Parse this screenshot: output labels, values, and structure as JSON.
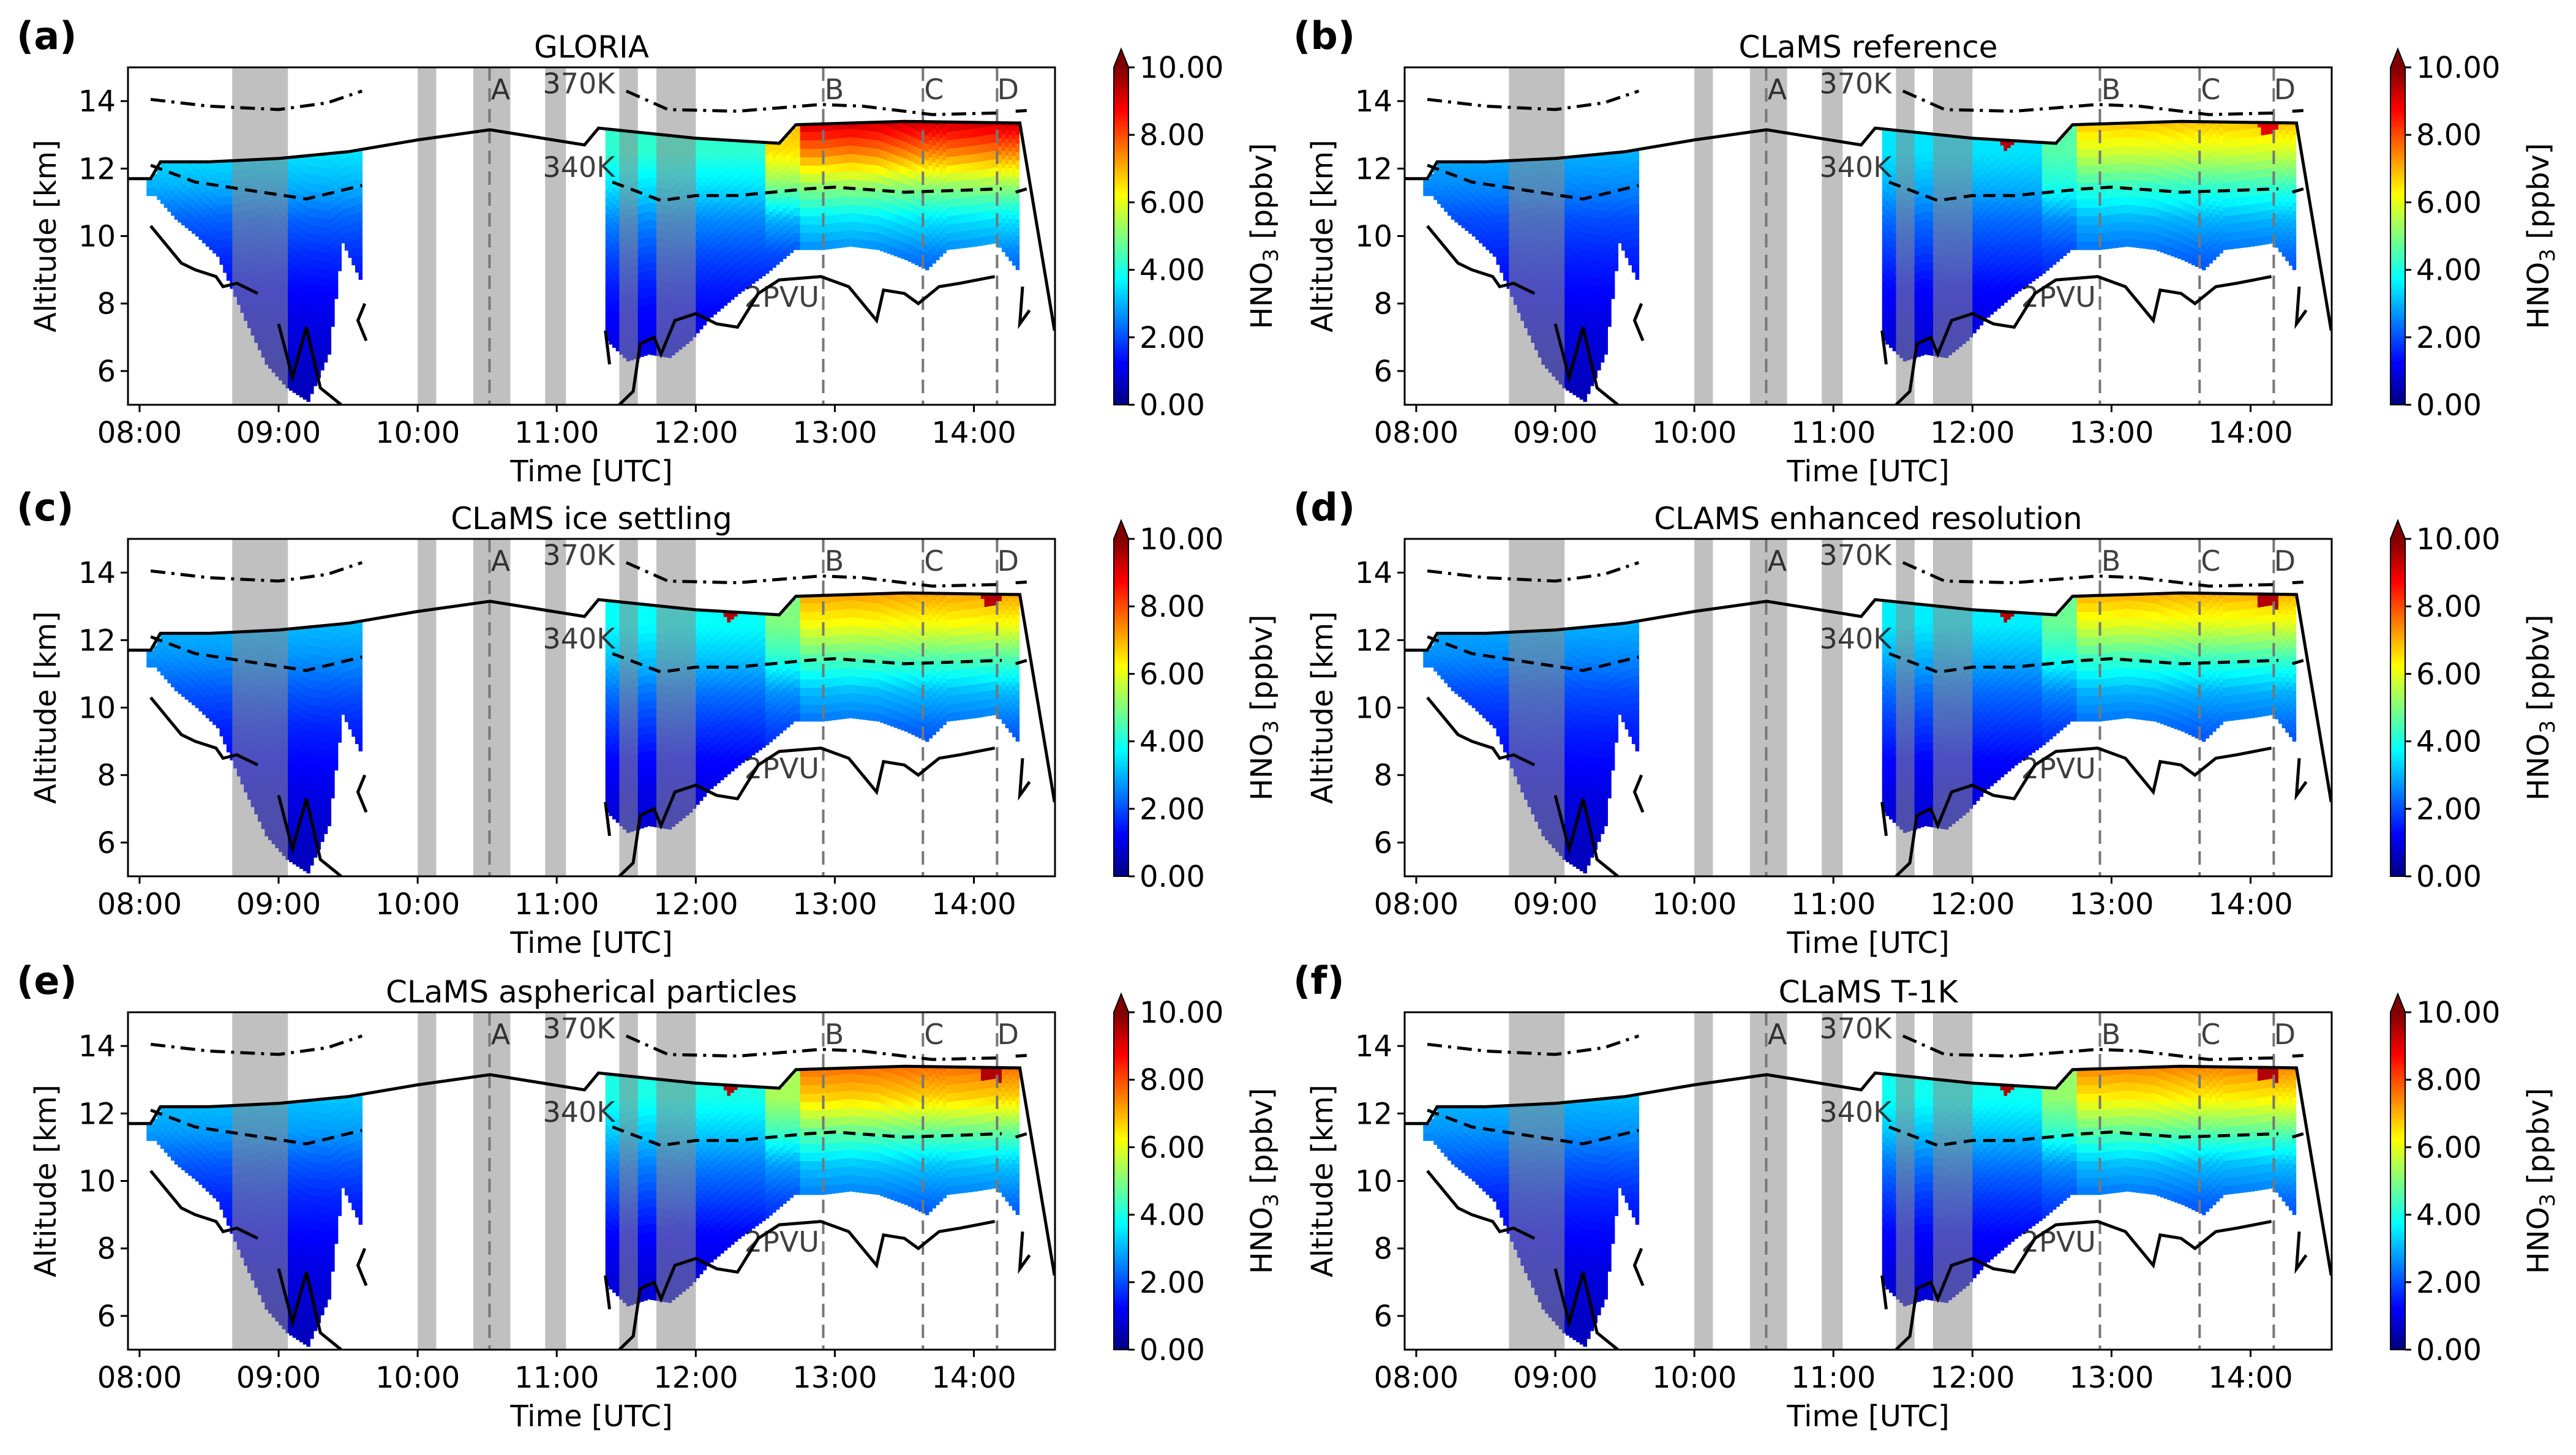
{
  "chart_data": {
    "type": "heatmap",
    "colormap": "jet",
    "xlabel": "Time [UTC]",
    "ylabel": "Altitude [km]",
    "colorbar_label": "HNO3 [ppbv]",
    "colorbar_label_sub": "3",
    "colorbar_label_pre": "HNO",
    "colorbar_label_post": " [ppbv]",
    "colorbar_range": [
      0,
      10
    ],
    "colorbar_ticks": [
      "0.00",
      "2.00",
      "4.00",
      "6.00",
      "8.00",
      "10.00"
    ],
    "colorbar_extend": "max",
    "xlim_hours_utc": [
      "07:55",
      "14:35"
    ],
    "ylim": [
      5,
      15
    ],
    "xticks": [
      "08:00",
      "09:00",
      "10:00",
      "11:00",
      "12:00",
      "13:00",
      "14:00"
    ],
    "yticks": [
      6,
      8,
      10,
      12,
      14
    ],
    "value_levels_km": [
      5.5,
      6.5,
      7.5,
      8.5,
      9.5,
      10.5,
      11.5,
      12.5,
      13.5
    ],
    "shaded_intervals": [
      [
        "08:40",
        "09:04"
      ],
      [
        "10:00",
        "10:08"
      ],
      [
        "10:24",
        "10:40"
      ],
      [
        "10:55",
        "11:04"
      ],
      [
        "11:27",
        "11:35"
      ],
      [
        "11:43",
        "12:00"
      ]
    ],
    "markers": [
      {
        "label": "A",
        "time": "10:31"
      },
      {
        "label": "B",
        "time": "12:55"
      },
      {
        "label": "C",
        "time": "13:38"
      },
      {
        "label": "D",
        "time": "14:10"
      }
    ],
    "line_labels": {
      "theta_370": "370K",
      "theta_340": "340K",
      "pv": "2PVU"
    },
    "coverage": [
      {
        "t": 8.1,
        "bottom": 11.2
      },
      {
        "t": 8.25,
        "bottom": 10.5
      },
      {
        "t": 8.4,
        "bottom": 10.0
      },
      {
        "t": 8.55,
        "bottom": 9.4
      },
      {
        "t": 8.75,
        "bottom": 7.5
      },
      {
        "t": 8.9,
        "bottom": 6.2
      },
      {
        "t": 9.05,
        "bottom": 5.5
      },
      {
        "t": 9.2,
        "bottom": 5.1
      },
      {
        "t": 9.35,
        "bottom": 6.5
      },
      {
        "t": 9.45,
        "bottom": 9.8
      },
      {
        "t": 9.6,
        "bottom": 8.5
      },
      {
        "t": 11.35,
        "bottom": 6.9
      },
      {
        "t": 11.5,
        "bottom": 6.3
      },
      {
        "t": 11.65,
        "bottom": 6.5
      },
      {
        "t": 11.8,
        "bottom": 6.4
      },
      {
        "t": 11.95,
        "bottom": 6.9
      },
      {
        "t": 12.1,
        "bottom": 7.6
      },
      {
        "t": 12.3,
        "bottom": 8.3
      },
      {
        "t": 12.5,
        "bottom": 8.9
      },
      {
        "t": 12.7,
        "bottom": 9.6
      },
      {
        "t": 12.9,
        "bottom": 9.6
      },
      {
        "t": 13.1,
        "bottom": 9.7
      },
      {
        "t": 13.3,
        "bottom": 9.6
      },
      {
        "t": 13.5,
        "bottom": 9.3
      },
      {
        "t": 13.65,
        "bottom": 9.0
      },
      {
        "t": 13.8,
        "bottom": 9.6
      },
      {
        "t": 14.0,
        "bottom": 9.7
      },
      {
        "t": 14.15,
        "bottom": 9.8
      },
      {
        "t": 14.32,
        "bottom": 8.9
      }
    ],
    "tropopause_line": [
      [
        7.92,
        11.7
      ],
      [
        8.08,
        11.7
      ],
      [
        8.15,
        12.2
      ],
      [
        8.5,
        12.2
      ],
      [
        9.0,
        12.3
      ],
      [
        9.5,
        12.5
      ],
      [
        10.0,
        12.85
      ],
      [
        10.52,
        13.15
      ],
      [
        11.2,
        12.7
      ],
      [
        11.3,
        13.2
      ],
      [
        12.0,
        12.9
      ],
      [
        12.6,
        12.75
      ],
      [
        12.72,
        13.3
      ],
      [
        13.5,
        13.4
      ],
      [
        14.33,
        13.35
      ],
      [
        14.58,
        7.2
      ]
    ],
    "theta_370_line": [
      [
        [
          8.08,
          14.05
        ],
        [
          8.5,
          13.85
        ],
        [
          9.0,
          13.75
        ],
        [
          9.35,
          13.95
        ],
        [
          9.6,
          14.3
        ]
      ],
      [
        [
          11.5,
          14.3
        ],
        [
          11.8,
          13.75
        ],
        [
          12.3,
          13.7
        ],
        [
          12.9,
          13.9
        ],
        [
          13.2,
          13.85
        ],
        [
          13.7,
          13.6
        ],
        [
          14.2,
          13.65
        ]
      ],
      [
        [
          14.3,
          13.7
        ],
        [
          14.38,
          13.72
        ]
      ]
    ],
    "theta_340_line": [
      [
        [
          8.08,
          12.1
        ],
        [
          8.4,
          11.6
        ],
        [
          8.8,
          11.35
        ],
        [
          9.2,
          11.1
        ],
        [
          9.6,
          11.5
        ]
      ],
      [
        [
          11.4,
          11.6
        ],
        [
          11.75,
          11.05
        ],
        [
          12.0,
          11.2
        ],
        [
          12.3,
          11.2
        ],
        [
          12.8,
          11.4
        ],
        [
          13.0,
          11.45
        ],
        [
          13.5,
          11.3
        ],
        [
          14.2,
          11.4
        ]
      ],
      [
        [
          14.3,
          11.3
        ],
        [
          14.38,
          11.4
        ]
      ]
    ],
    "pv_line": [
      [
        [
          8.08,
          10.3
        ],
        [
          8.2,
          9.7
        ],
        [
          8.3,
          9.2
        ],
        [
          8.4,
          9.0
        ],
        [
          8.55,
          8.8
        ],
        [
          8.6,
          8.5
        ],
        [
          8.7,
          8.6
        ],
        [
          8.85,
          8.3
        ]
      ],
      [
        [
          9.0,
          7.4
        ],
        [
          9.1,
          5.8
        ],
        [
          9.2,
          7.3
        ],
        [
          9.3,
          5.5
        ],
        [
          9.45,
          5.0
        ]
      ],
      [
        [
          9.62,
          8.0
        ],
        [
          9.57,
          7.5
        ],
        [
          9.63,
          6.9
        ]
      ],
      [
        [
          11.35,
          7.2
        ],
        [
          11.38,
          6.2
        ]
      ],
      [
        [
          11.45,
          5.0
        ],
        [
          11.55,
          5.4
        ],
        [
          11.6,
          6.8
        ],
        [
          11.7,
          7.0
        ],
        [
          11.75,
          6.5
        ],
        [
          11.85,
          7.5
        ],
        [
          12.0,
          7.7
        ],
        [
          12.15,
          7.4
        ],
        [
          12.3,
          7.3
        ],
        [
          12.45,
          8.3
        ],
        [
          12.6,
          8.7
        ],
        [
          12.9,
          8.8
        ],
        [
          13.1,
          8.5
        ],
        [
          13.3,
          7.5
        ],
        [
          13.35,
          8.4
        ],
        [
          13.5,
          8.3
        ],
        [
          13.6,
          8.0
        ],
        [
          13.75,
          8.5
        ],
        [
          13.9,
          8.6
        ],
        [
          14.15,
          8.8
        ]
      ],
      [
        [
          14.35,
          8.5
        ],
        [
          14.33,
          7.4
        ],
        [
          14.4,
          7.8
        ]
      ]
    ],
    "panels": [
      {
        "label": "(a)",
        "title": "GLORIA",
        "regimes": [
          {
            "t": [
              8.05,
              9.65
            ],
            "values": [
              0.6,
              0.8,
              1.0,
              1.3,
              1.7,
              2.2,
              3.0,
              3.5,
              3.5
            ]
          },
          {
            "t": [
              11.3,
              12.5
            ],
            "values": [
              0.8,
              1.0,
              1.2,
              1.5,
              2.0,
              2.6,
              3.5,
              4.2,
              4.2
            ]
          },
          {
            "t": [
              12.5,
              12.75
            ],
            "values": [
              1.0,
              1.0,
              1.0,
              1.5,
              2.0,
              3.0,
              5.0,
              6.5,
              7.0
            ]
          },
          {
            "t": [
              12.75,
              14.35
            ],
            "values": [
              1.0,
              1.0,
              1.5,
              2.0,
              2.5,
              3.5,
              5.2,
              7.5,
              9.5
            ]
          }
        ],
        "hotspots": []
      },
      {
        "label": "(b)",
        "title": "CLaMS reference",
        "regimes": [
          {
            "t": [
              8.05,
              9.65
            ],
            "values": [
              0.6,
              0.8,
              1.0,
              1.3,
              1.6,
              2.0,
              2.6,
              3.0,
              3.0
            ]
          },
          {
            "t": [
              11.3,
              12.5
            ],
            "values": [
              0.6,
              0.8,
              1.0,
              1.3,
              1.8,
              2.3,
              3.0,
              3.5,
              3.5
            ]
          },
          {
            "t": [
              12.5,
              12.75
            ],
            "values": [
              0.8,
              1.0,
              1.0,
              1.4,
              1.9,
              2.6,
              4.0,
              4.6,
              4.6
            ]
          },
          {
            "t": [
              12.75,
              14.35
            ],
            "values": [
              1.0,
              1.0,
              1.3,
              1.8,
              2.3,
              3.0,
              4.3,
              5.8,
              7.0
            ]
          }
        ],
        "hotspots": [
          {
            "t": [
              12.2,
              12.3
            ],
            "alt": [
              12.6,
              13.3
            ],
            "value": 9.5
          },
          {
            "t": [
              14.05,
              14.2
            ],
            "alt": [
              13.1,
              13.4
            ],
            "value": 9.0
          }
        ]
      },
      {
        "label": "(c)",
        "title": "CLaMS ice settling",
        "regimes": [
          {
            "t": [
              8.05,
              9.65
            ],
            "values": [
              0.6,
              0.8,
              1.0,
              1.3,
              1.6,
              2.1,
              2.7,
              3.1,
              3.1
            ]
          },
          {
            "t": [
              11.3,
              12.5
            ],
            "values": [
              0.6,
              0.8,
              1.0,
              1.3,
              1.8,
              2.4,
              3.2,
              3.8,
              3.8
            ]
          },
          {
            "t": [
              12.5,
              12.75
            ],
            "values": [
              0.8,
              1.0,
              1.0,
              1.4,
              2.0,
              2.7,
              4.2,
              5.0,
              5.0
            ]
          },
          {
            "t": [
              12.75,
              14.35
            ],
            "values": [
              1.0,
              1.0,
              1.3,
              1.8,
              2.3,
              3.1,
              4.6,
              6.2,
              7.3
            ]
          }
        ],
        "hotspots": [
          {
            "t": [
              12.2,
              12.3
            ],
            "alt": [
              12.6,
              13.3
            ],
            "value": 9.5
          },
          {
            "t": [
              14.05,
              14.2
            ],
            "alt": [
              13.1,
              13.4
            ],
            "value": 9.5
          }
        ]
      },
      {
        "label": "(d)",
        "title": "CLAMS enhanced resolution",
        "regimes": [
          {
            "t": [
              8.05,
              9.65
            ],
            "values": [
              0.6,
              0.8,
              1.0,
              1.3,
              1.6,
              2.0,
              2.6,
              3.0,
              3.0
            ]
          },
          {
            "t": [
              11.3,
              12.5
            ],
            "values": [
              0.6,
              0.8,
              1.0,
              1.3,
              1.8,
              2.3,
              3.0,
              3.6,
              3.6
            ]
          },
          {
            "t": [
              12.5,
              12.75
            ],
            "values": [
              0.8,
              1.0,
              1.0,
              1.4,
              1.9,
              2.6,
              4.0,
              4.8,
              4.8
            ]
          },
          {
            "t": [
              12.75,
              14.35
            ],
            "values": [
              1.0,
              1.0,
              1.3,
              1.8,
              2.3,
              3.0,
              4.4,
              6.0,
              7.2
            ]
          }
        ],
        "hotspots": [
          {
            "t": [
              12.2,
              12.3
            ],
            "alt": [
              12.6,
              13.3
            ],
            "value": 9.5
          },
          {
            "t": [
              14.05,
              14.2
            ],
            "alt": [
              13.0,
              13.4
            ],
            "value": 9.5
          }
        ]
      },
      {
        "label": "(e)",
        "title": "CLaMS aspherical particles",
        "regimes": [
          {
            "t": [
              8.05,
              9.65
            ],
            "values": [
              0.6,
              0.8,
              1.0,
              1.3,
              1.6,
              2.1,
              2.8,
              3.2,
              3.2
            ]
          },
          {
            "t": [
              11.3,
              12.5
            ],
            "values": [
              0.6,
              0.8,
              1.0,
              1.3,
              1.9,
              2.5,
              3.3,
              4.0,
              4.0
            ]
          },
          {
            "t": [
              12.5,
              12.75
            ],
            "values": [
              0.8,
              1.0,
              1.0,
              1.4,
              2.0,
              2.8,
              4.4,
              5.4,
              5.4
            ]
          },
          {
            "t": [
              12.75,
              14.35
            ],
            "values": [
              1.0,
              1.0,
              1.3,
              1.8,
              2.4,
              3.2,
              4.8,
              6.7,
              7.8
            ]
          }
        ],
        "hotspots": [
          {
            "t": [
              12.2,
              12.3
            ],
            "alt": [
              12.6,
              13.3
            ],
            "value": 9.5
          },
          {
            "t": [
              14.05,
              14.2
            ],
            "alt": [
              13.0,
              13.4
            ],
            "value": 9.5
          }
        ]
      },
      {
        "label": "(f)",
        "title": "CLaMS T-1K",
        "regimes": [
          {
            "t": [
              8.05,
              9.65
            ],
            "values": [
              0.6,
              0.8,
              1.0,
              1.3,
              1.6,
              2.1,
              2.7,
              3.1,
              3.1
            ]
          },
          {
            "t": [
              11.3,
              12.5
            ],
            "values": [
              0.6,
              0.8,
              1.0,
              1.3,
              1.8,
              2.4,
              3.2,
              3.9,
              3.9
            ]
          },
          {
            "t": [
              12.5,
              12.75
            ],
            "values": [
              0.8,
              1.0,
              1.0,
              1.4,
              2.0,
              2.7,
              4.3,
              5.2,
              5.2
            ]
          },
          {
            "t": [
              12.75,
              14.35
            ],
            "values": [
              1.0,
              1.0,
              1.3,
              1.8,
              2.3,
              3.1,
              4.7,
              6.4,
              7.6
            ]
          }
        ],
        "hotspots": [
          {
            "t": [
              12.2,
              12.3
            ],
            "alt": [
              12.6,
              13.3
            ],
            "value": 9.5
          },
          {
            "t": [
              14.05,
              14.2
            ],
            "alt": [
              13.0,
              13.4
            ],
            "value": 9.5
          }
        ]
      }
    ]
  }
}
